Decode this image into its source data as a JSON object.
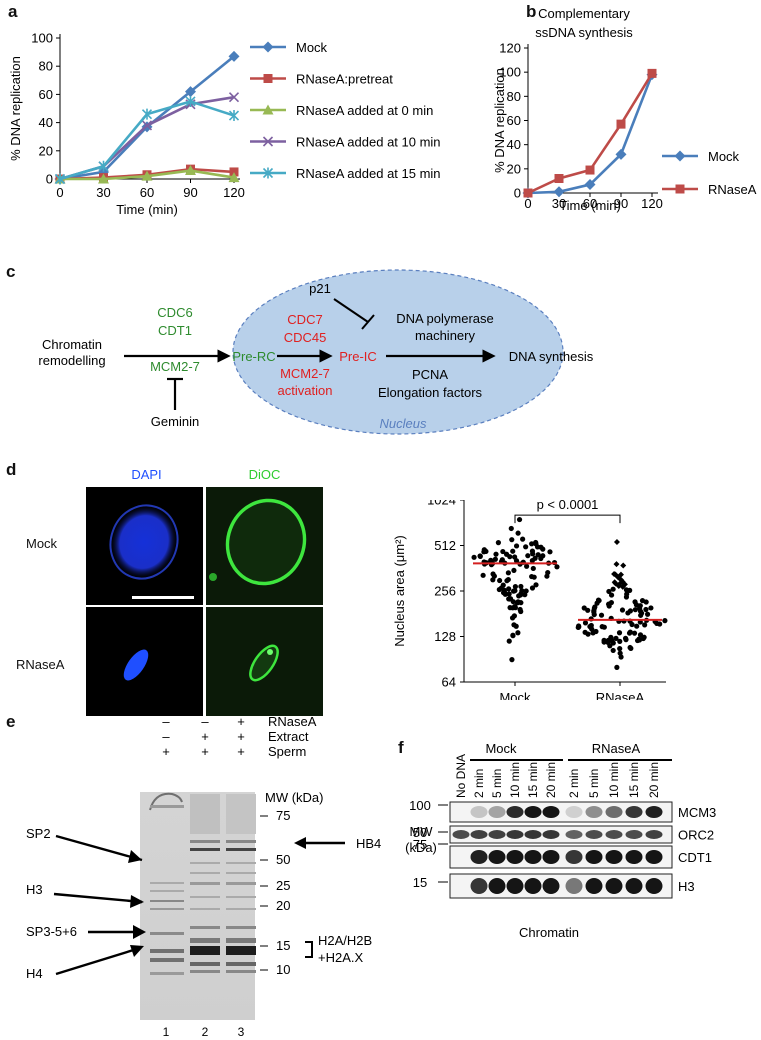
{
  "panels": {
    "a": "a",
    "b": "b",
    "c": "c",
    "d": "d",
    "e": "e",
    "f": "f"
  },
  "chart_data": [
    {
      "panel": "a",
      "type": "line",
      "xlabel": "Time (min)",
      "ylabel": "% DNA replication",
      "x": [
        0,
        30,
        60,
        90,
        120
      ],
      "xlim": [
        0,
        120
      ],
      "ylim": [
        0,
        100
      ],
      "xticks": [
        "0",
        "30",
        "60",
        "90",
        "120"
      ],
      "yticks": [
        "0",
        "20",
        "40",
        "60",
        "80",
        "100"
      ],
      "legend_position": "right",
      "series": [
        {
          "name": "Mock",
          "color": "#4a7ebb",
          "marker": "diamond",
          "values": [
            0,
            5,
            37,
            62,
            87
          ]
        },
        {
          "name": "RNaseA:pretreat",
          "color": "#be4b48",
          "marker": "square",
          "values": [
            0,
            1,
            3,
            7,
            5
          ]
        },
        {
          "name": "RNaseA added at 0 min",
          "color": "#98b954",
          "marker": "triangle",
          "values": [
            0,
            0,
            2,
            6,
            1
          ]
        },
        {
          "name": "RNaseA added at 10 min",
          "color": "#7d60a0",
          "marker": "x",
          "values": [
            0,
            9,
            38,
            53,
            58
          ]
        },
        {
          "name": "RNaseA added at 15 min",
          "color": "#46aac5",
          "marker": "star",
          "values": [
            0,
            9,
            46,
            55,
            45
          ]
        }
      ]
    },
    {
      "panel": "b",
      "type": "line",
      "title": "Complementary\nssDNA synthesis",
      "xlabel": "Time (min)",
      "ylabel": "% DNA replication",
      "x": [
        0,
        30,
        60,
        90,
        120
      ],
      "xlim": [
        0,
        120
      ],
      "ylim": [
        0,
        120
      ],
      "xticks": [
        "0",
        "30",
        "60",
        "90",
        "120"
      ],
      "yticks": [
        "0",
        "20",
        "40",
        "60",
        "80",
        "100",
        "120"
      ],
      "legend_position": "right",
      "series": [
        {
          "name": "Mock",
          "color": "#4a7ebb",
          "marker": "diamond",
          "values": [
            0,
            1,
            7,
            32,
            98
          ]
        },
        {
          "name": "RNaseA",
          "color": "#be4b48",
          "marker": "square",
          "values": [
            0,
            12,
            19,
            57,
            99
          ]
        }
      ]
    },
    {
      "panel": "d",
      "type": "scatter",
      "ylabel": "Nucleus area (μm²)",
      "categories": [
        "Mock",
        "RNaseA"
      ],
      "yscale": "log2",
      "ylim": [
        64,
        1024
      ],
      "yticks": [
        "64",
        "128",
        "256",
        "512",
        "1024"
      ],
      "significance": "p < 0.0001",
      "median_color": "#d42020",
      "series": [
        {
          "name": "Mock",
          "median": 390,
          "range": [
            90,
            760
          ]
        },
        {
          "name": "RNaseA",
          "median": 165,
          "range": [
            80,
            540
          ]
        }
      ]
    }
  ],
  "diagram_c": {
    "nodes": {
      "chromatin": "Chromatin\nremodelling",
      "cdc6": "CDC6",
      "cdt1": "CDT1",
      "mcm27": "MCM2-7",
      "geminin": "Geminin",
      "prerc": "Pre-RC",
      "p21": "p21",
      "cdc7": "CDC7",
      "cdc45": "CDC45",
      "preic": "Pre-IC",
      "mcmact": "MCM2-7\nactivation",
      "dnapol": "DNA polymerase\nmachinery",
      "pcna": "PCNA",
      "elong": "Elongation factors",
      "dnasyn": "DNA synthesis",
      "nucleus": "Nucleus"
    },
    "colors": {
      "green": "#2e8b2e",
      "red": "#e02020",
      "nucleus_fill": "#b8d0ea",
      "nucleus_text": "#5a7fbf"
    }
  },
  "micrographs": {
    "col_dapi": "DAPI",
    "col_dioc": "DiOC",
    "row_mock": "Mock",
    "row_rnase": "RNaseA",
    "dapi_color": "#1f4fff",
    "dioc_color": "#2ecc2e"
  },
  "gel_e": {
    "header_rows": [
      {
        "label": "RNaseA",
        "marks": [
          "–",
          "–",
          "+"
        ]
      },
      {
        "label": "Extract",
        "marks": [
          "–",
          "+",
          "+"
        ]
      },
      {
        "label": "Sperm",
        "marks": [
          "+",
          "+",
          "+"
        ]
      }
    ],
    "mw_title": "MW (kDa)",
    "markers": [
      "75",
      "50",
      "25",
      "20",
      "15",
      "10"
    ],
    "left_labels": [
      "SP2",
      "H3",
      "SP3-5+6",
      "H4"
    ],
    "right_labels": [
      "HB4",
      "H2A/H2B\n+H2A.X"
    ],
    "lanes": [
      "1",
      "2",
      "3"
    ]
  },
  "blot_f": {
    "groups": [
      "Mock",
      "RNaseA"
    ],
    "first_lane": "No DNA",
    "times": [
      "2 min",
      "5 min",
      "10 min",
      "15 min",
      "20 min"
    ],
    "mw_title": "MW\n(kDa)",
    "markers": [
      "100",
      "50",
      "75",
      "15"
    ],
    "proteins": [
      "MCM3",
      "ORC2",
      "CDT1",
      "H3"
    ],
    "footer": "Chromatin"
  }
}
